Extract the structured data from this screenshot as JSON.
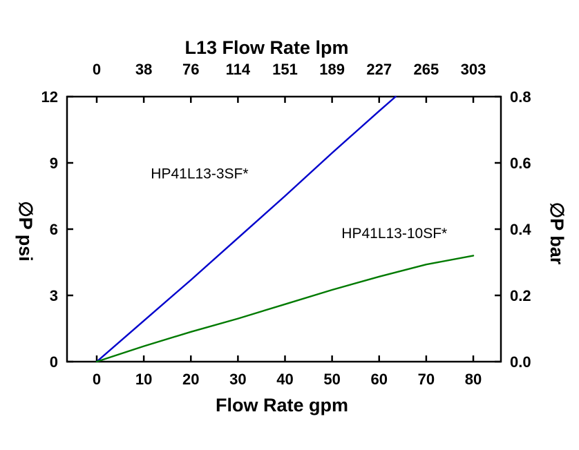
{
  "chart_data": {
    "type": "line",
    "background": "#ffffff",
    "grid": false,
    "top_axis": {
      "title": "L13 Flow Rate lpm",
      "tick_labels": [
        "0",
        "38",
        "76",
        "114",
        "151",
        "189",
        "227",
        "265",
        "303"
      ]
    },
    "bottom_axis": {
      "title": "Flow Rate gpm",
      "tick_values": [
        0,
        10,
        20,
        30,
        40,
        50,
        60,
        70,
        80
      ]
    },
    "left_axis": {
      "title": "∅P psi",
      "tick_values": [
        0,
        3,
        6,
        9,
        12
      ],
      "range": [
        0,
        12
      ]
    },
    "right_axis": {
      "title": "∅P bar",
      "tick_labels": [
        "0.0",
        "0.2",
        "0.4",
        "0.6",
        "0.8"
      ],
      "range": [
        0.0,
        0.8
      ]
    },
    "x_axis_range_gpm": [
      0,
      80
    ],
    "series": [
      {
        "name": "HP41L13-3SF*",
        "color": "#0000cc",
        "x_gpm": [
          0,
          10,
          20,
          30,
          40,
          50,
          60,
          63.5
        ],
        "y_psi": [
          0,
          1.85,
          3.7,
          5.6,
          7.5,
          9.45,
          11.35,
          12
        ],
        "label": {
          "text": "HP41L13-3SF*",
          "x_gpm": 11.5,
          "y_psi": 8.3
        }
      },
      {
        "name": "HP41L13-10SF*",
        "color": "#007a00",
        "x_gpm": [
          0,
          10,
          20,
          30,
          40,
          50,
          60,
          70,
          80
        ],
        "y_psi": [
          0,
          0.7,
          1.35,
          1.95,
          2.6,
          3.25,
          3.85,
          4.4,
          4.8
        ],
        "label": {
          "text": "HP41L13-10SF*",
          "x_gpm": 52,
          "y_psi": 5.6
        }
      }
    ]
  }
}
